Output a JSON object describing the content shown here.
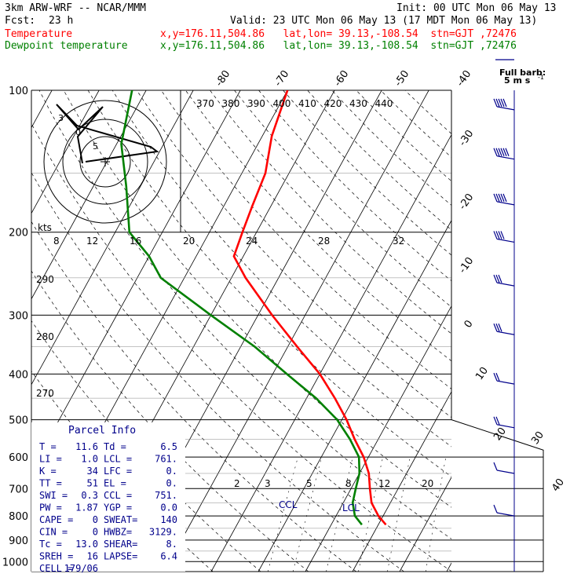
{
  "header": {
    "model": "3km ARW-WRF -- NCAR/MMM",
    "init": "Init: 00 UTC Mon 06 May 13",
    "fcst_label": "Fcst:",
    "fcst_value": "23 h",
    "valid": "Valid: 23 UTC Mon 06 May 13 (17 MDT Mon 06 May 13)",
    "temp_label": "Temperature",
    "temp_info": "x,y=176.11,504.86   lat,lon= 39.13,-108.54  stn=GJT ,72476",
    "dew_label": "Dewpoint temperature",
    "dew_info": "x,y=176.11,504.86   lat,lon= 39.13,-108.54  stn=GJT ,72476"
  },
  "colors": {
    "temperature": "#ff0000",
    "dewpoint": "#008000",
    "frame": "#000000",
    "wind": "#00008b",
    "parcel": "#00008b",
    "header_text": "#000000"
  },
  "barb_legend": {
    "title": "Full barb:",
    "value": "5 m s",
    "exp": "-1"
  },
  "parcel_info": {
    "title": "Parcel Info",
    "rows": [
      {
        "l1": "T  =",
        "v1": "11.6",
        "l2": "Td =",
        "v2": "6.5"
      },
      {
        "l1": "LI =",
        "v1": "1.0",
        "l2": "LCL =",
        "v2": "761."
      },
      {
        "l1": "K  =",
        "v1": "34",
        "l2": "LFC =",
        "v2": "0."
      },
      {
        "l1": "TT =",
        "v1": "51",
        "l2": "EL  =",
        "v2": "0."
      },
      {
        "l1": "SWI =",
        "v1": "0.3",
        "l2": "CCL =",
        "v2": "751."
      },
      {
        "l1": "PW =",
        "v1": "1.87",
        "l2": "YGP =",
        "v2": "0.0"
      },
      {
        "l1": "CAPE =",
        "v1": "0",
        "l2": "SWEAT=",
        "v2": "140"
      },
      {
        "l1": "CIN =",
        "v1": "0",
        "l2": "HWBZ=",
        "v2": "3129."
      },
      {
        "l1": "Tc =",
        "v1": "13.0",
        "l2": "SHEAR=",
        "v2": "8."
      },
      {
        "l1": "SREH =",
        "v1": "16",
        "l2": "LAPSE=",
        "v2": "6.4"
      },
      {
        "l1": "CELL =",
        "v1": "179/06",
        "l2": "",
        "v2": ""
      }
    ]
  },
  "hodograph": {
    "units_label": "kts",
    "ring_labels": [
      "5",
      "10"
    ],
    "point_labels": [
      "3",
      "0"
    ]
  },
  "chart_data": {
    "type": "line",
    "title": "",
    "y_axis": "pressure (hPa, log scale, inverted)",
    "pressure_ticks": [
      100,
      200,
      300,
      400,
      500,
      600,
      700,
      800,
      900,
      1000
    ],
    "isotherm_labels": [
      -80,
      -70,
      -60,
      -50,
      -40,
      -30,
      -20,
      -10,
      0,
      10,
      20,
      30,
      40
    ],
    "potential_temp_labels": [
      370,
      380,
      390,
      400,
      410,
      420,
      430,
      440
    ],
    "dry_adiabat_labels": [
      290,
      280,
      270
    ],
    "mixing_ratio_labels": [
      2,
      3,
      5,
      8,
      12,
      20
    ],
    "upper_temp_labels": [
      8,
      12,
      16,
      20,
      24,
      28,
      32
    ],
    "lcl_label": "LCL",
    "ccl_label": "CCL",
    "series": [
      {
        "name": "Temperature",
        "color": "#ff0000",
        "points": [
          {
            "p": 100,
            "t": -60
          },
          {
            "p": 125,
            "t": -58
          },
          {
            "p": 150,
            "t": -55
          },
          {
            "p": 175,
            "t": -54
          },
          {
            "p": 200,
            "t": -53
          },
          {
            "p": 225,
            "t": -52
          },
          {
            "p": 250,
            "t": -47
          },
          {
            "p": 300,
            "t": -37
          },
          {
            "p": 350,
            "t": -28
          },
          {
            "p": 400,
            "t": -20
          },
          {
            "p": 450,
            "t": -14
          },
          {
            "p": 500,
            "t": -9
          },
          {
            "p": 550,
            "t": -5
          },
          {
            "p": 600,
            "t": -1
          },
          {
            "p": 650,
            "t": 2
          },
          {
            "p": 700,
            "t": 4
          },
          {
            "p": 750,
            "t": 6
          },
          {
            "p": 800,
            "t": 9
          },
          {
            "p": 835,
            "t": 11.6
          }
        ]
      },
      {
        "name": "Dewpoint temperature",
        "color": "#008000",
        "points": [
          {
            "p": 100,
            "t": -93
          },
          {
            "p": 130,
            "t": -89
          },
          {
            "p": 160,
            "t": -83
          },
          {
            "p": 200,
            "t": -77
          },
          {
            "p": 225,
            "t": -70
          },
          {
            "p": 250,
            "t": -65
          },
          {
            "p": 300,
            "t": -50
          },
          {
            "p": 350,
            "t": -37
          },
          {
            "p": 400,
            "t": -27
          },
          {
            "p": 450,
            "t": -18
          },
          {
            "p": 500,
            "t": -11
          },
          {
            "p": 550,
            "t": -6
          },
          {
            "p": 600,
            "t": -2
          },
          {
            "p": 650,
            "t": 0
          },
          {
            "p": 700,
            "t": 1
          },
          {
            "p": 750,
            "t": 2
          },
          {
            "p": 800,
            "t": 4
          },
          {
            "p": 835,
            "t": 6.5
          }
        ]
      }
    ],
    "winds": [
      {
        "p": 110,
        "dir": 260,
        "spd_barbs": 5
      },
      {
        "p": 140,
        "dir": 260,
        "spd_barbs": 6
      },
      {
        "p": 175,
        "dir": 255,
        "spd_barbs": 5
      },
      {
        "p": 210,
        "dir": 260,
        "spd_barbs": 4
      },
      {
        "p": 260,
        "dir": 250,
        "spd_barbs": 3
      },
      {
        "p": 330,
        "dir": 240,
        "spd_barbs": 3
      },
      {
        "p": 420,
        "dir": 230,
        "spd_barbs": 2
      },
      {
        "p": 520,
        "dir": 220,
        "spd_barbs": 2
      },
      {
        "p": 650,
        "dir": 200,
        "spd_barbs": 1
      },
      {
        "p": 800,
        "dir": 180,
        "spd_barbs": 1
      }
    ]
  }
}
